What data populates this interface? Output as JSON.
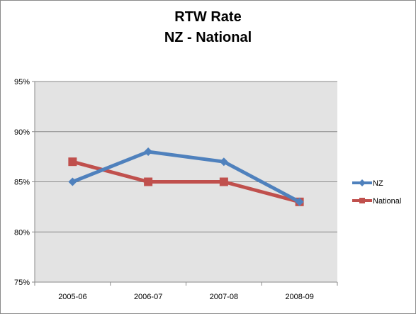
{
  "chart_data": {
    "type": "line",
    "title_lines": [
      "RTW Rate",
      "NZ - National"
    ],
    "categories": [
      "2005-06",
      "2006-07",
      "2007-08",
      "2008-09"
    ],
    "series": [
      {
        "name": "NZ",
        "values": [
          0.85,
          0.88,
          0.87,
          0.83
        ],
        "color": "#4f81bd",
        "marker": "diamond"
      },
      {
        "name": "National",
        "values": [
          0.87,
          0.85,
          0.85,
          0.83
        ],
        "color": "#c0504d",
        "marker": "square"
      }
    ],
    "ylim": [
      0.75,
      0.95
    ],
    "yticks": [
      0.75,
      0.8,
      0.85,
      0.9,
      0.95
    ],
    "ytick_labels": [
      "75%",
      "80%",
      "85%",
      "90%",
      "95%"
    ],
    "grid": true,
    "plot_background": "#e3e3e3",
    "legend_position": "right"
  }
}
